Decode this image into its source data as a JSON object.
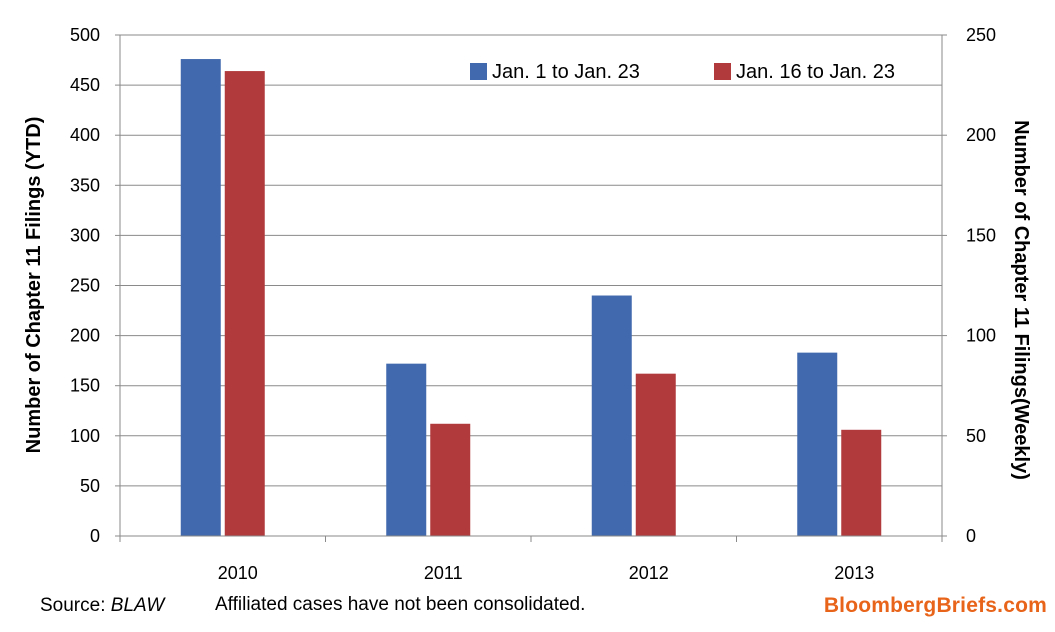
{
  "chart_data": {
    "type": "bar",
    "categories": [
      "2010",
      "2011",
      "2012",
      "2013"
    ],
    "series": [
      {
        "name": "Jan. 1 to Jan. 23",
        "axis": "left",
        "color": "#4169AE",
        "values": [
          476,
          172,
          240,
          183
        ]
      },
      {
        "name": "Jan. 16 to Jan. 23",
        "axis": "right",
        "color": "#B13A3D",
        "values": [
          232,
          56,
          81,
          53
        ]
      }
    ],
    "y_left": {
      "label": "Number of Chapter 11 Filings   (YTD)",
      "min": 0,
      "max": 500,
      "step": 50,
      "ticks": [
        "0",
        "50",
        "100",
        "150",
        "200",
        "250",
        "300",
        "350",
        "400",
        "450",
        "500"
      ]
    },
    "y_right": {
      "label": "Number of Chapter 11 Filings(Weekly)",
      "min": 0,
      "max": 250,
      "step": 50,
      "ticks": [
        "0",
        "50",
        "100",
        "150",
        "200",
        "250"
      ]
    },
    "grid": true,
    "legend_position": "top-right"
  },
  "footer": {
    "source_prefix": "Source: ",
    "source_name": "BLAW",
    "note": "Affiliated cases have not been consolidated.",
    "brand": "BloombergBriefs.com",
    "brand_color": "#E8641A"
  }
}
